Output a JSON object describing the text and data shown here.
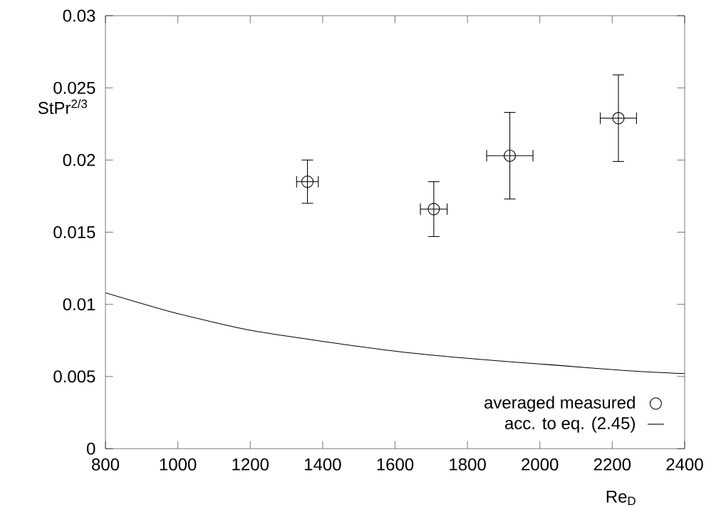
{
  "chart_data": {
    "type": "scatter",
    "xlabel": "Re$_{D}$",
    "ylabel": "StPr$^{2/3}$",
    "xlim": [
      800,
      2400
    ],
    "xticks": [
      800,
      1000,
      1200,
      1400,
      1600,
      1800,
      2000,
      2200,
      2400
    ],
    "ylim": [
      0,
      0.03
    ],
    "yticks": [
      0,
      0.005,
      0.01,
      0.015,
      0.02,
      0.025,
      0.03
    ],
    "legend": "bottom right",
    "grid": false,
    "series": [
      {
        "name": "averaged measured",
        "marker": "circle",
        "color": "#000000",
        "x": [
          1358,
          1707,
          1917,
          2217
        ],
        "values": [
          0.0185,
          0.0166,
          0.0203,
          0.0229
        ],
        "errors": [
          0.0015,
          0.0019,
          0.003,
          0.003
        ],
        "xerrors": [
          30,
          37,
          64,
          50
        ]
      },
      {
        "name": "acc. to eq. (2.45)",
        "type": "line",
        "marker": "none",
        "line_style": "solid",
        "color": "#000000",
        "x": [
          800,
          993,
          1201,
          1410,
          1619,
          1828,
          2036,
          2243,
          2400
        ],
        "values": [
          0.0108,
          0.0094,
          0.0082,
          0.0074,
          0.0067,
          0.0062,
          0.0058,
          0.0054,
          0.0052
        ]
      }
    ]
  }
}
